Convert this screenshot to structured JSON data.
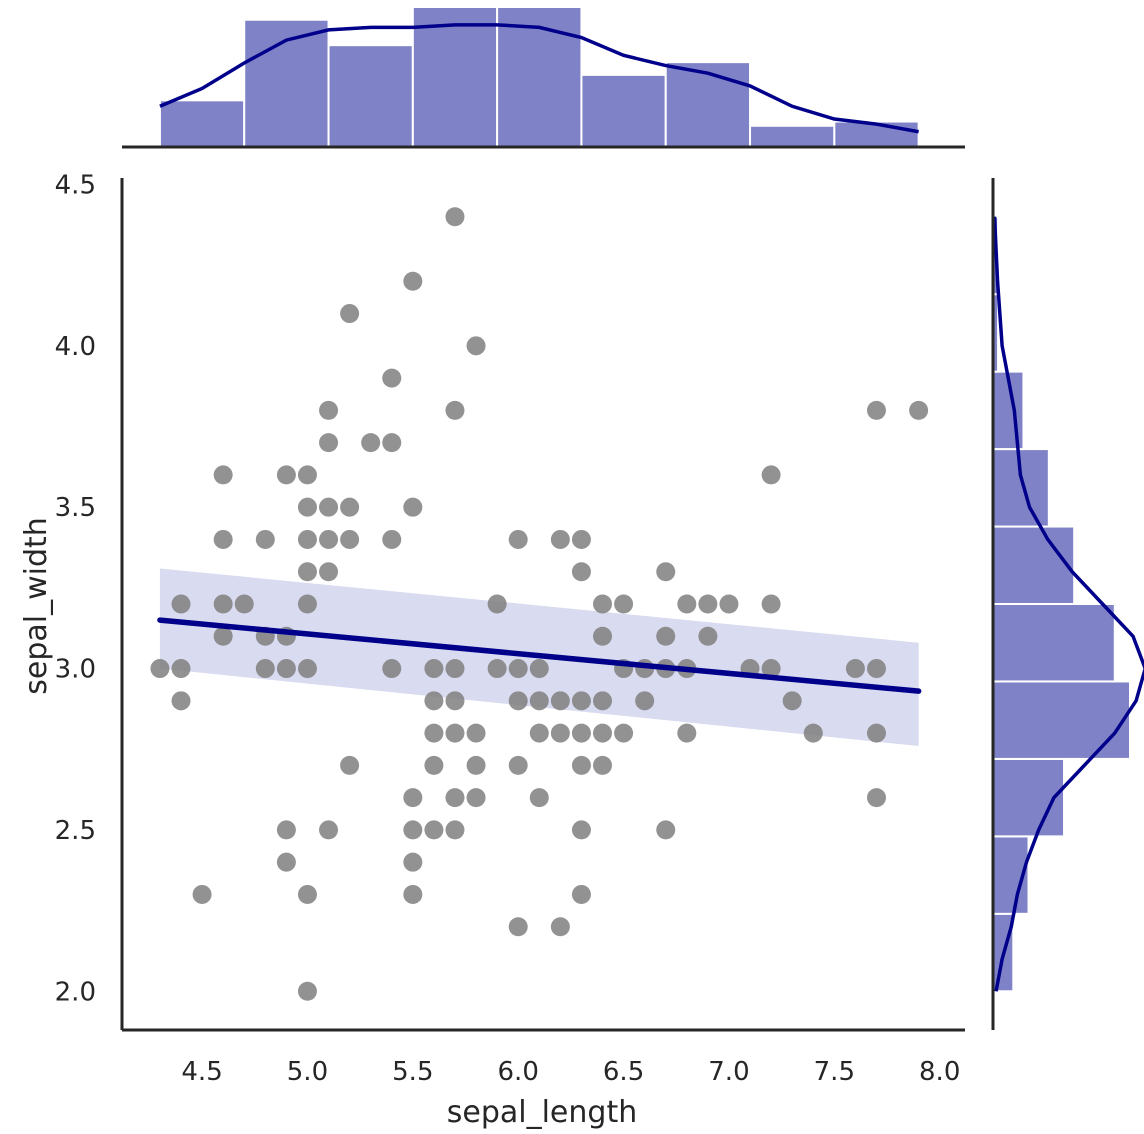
{
  "chart_data": {
    "type": "scatter",
    "title": "",
    "xlabel": "sepal_length",
    "ylabel": "sepal_width",
    "xlim": [
      4.12,
      8.12
    ],
    "ylim": [
      1.88,
      4.52
    ],
    "x_ticks": [
      4.5,
      5.0,
      5.5,
      6.0,
      6.5,
      7.0,
      7.5,
      8.0
    ],
    "y_ticks": [
      2.0,
      2.5,
      3.0,
      3.5,
      4.0,
      4.5
    ],
    "grid": false,
    "colors": {
      "points": "#7f7f7f",
      "regression_line": "#00008b",
      "confidence_band": "#aab0dd",
      "histogram": "#7f82c7",
      "kde": "#00008b",
      "axes": "#262626"
    },
    "points": [
      [
        4.3,
        3.0
      ],
      [
        4.4,
        2.9
      ],
      [
        4.4,
        3.0
      ],
      [
        4.4,
        3.2
      ],
      [
        4.5,
        2.3
      ],
      [
        4.6,
        3.1
      ],
      [
        4.6,
        3.2
      ],
      [
        4.6,
        3.4
      ],
      [
        4.6,
        3.6
      ],
      [
        4.7,
        3.2
      ],
      [
        4.8,
        3.0
      ],
      [
        4.8,
        3.1
      ],
      [
        4.8,
        3.4
      ],
      [
        4.9,
        2.4
      ],
      [
        4.9,
        2.5
      ],
      [
        4.9,
        3.0
      ],
      [
        4.9,
        3.1
      ],
      [
        4.9,
        3.6
      ],
      [
        5.0,
        2.0
      ],
      [
        5.0,
        2.3
      ],
      [
        5.0,
        3.0
      ],
      [
        5.0,
        3.2
      ],
      [
        5.0,
        3.3
      ],
      [
        5.0,
        3.4
      ],
      [
        5.0,
        3.5
      ],
      [
        5.0,
        3.6
      ],
      [
        5.1,
        2.5
      ],
      [
        5.1,
        3.3
      ],
      [
        5.1,
        3.4
      ],
      [
        5.1,
        3.5
      ],
      [
        5.1,
        3.7
      ],
      [
        5.1,
        3.8
      ],
      [
        5.2,
        2.7
      ],
      [
        5.2,
        3.4
      ],
      [
        5.2,
        3.5
      ],
      [
        5.2,
        4.1
      ],
      [
        5.3,
        3.7
      ],
      [
        5.4,
        3.0
      ],
      [
        5.4,
        3.4
      ],
      [
        5.4,
        3.7
      ],
      [
        5.4,
        3.9
      ],
      [
        5.5,
        2.3
      ],
      [
        5.5,
        2.4
      ],
      [
        5.5,
        2.5
      ],
      [
        5.5,
        2.6
      ],
      [
        5.5,
        3.5
      ],
      [
        5.5,
        4.2
      ],
      [
        5.6,
        2.5
      ],
      [
        5.6,
        2.7
      ],
      [
        5.6,
        2.8
      ],
      [
        5.6,
        2.9
      ],
      [
        5.6,
        3.0
      ],
      [
        5.7,
        2.5
      ],
      [
        5.7,
        2.6
      ],
      [
        5.7,
        2.8
      ],
      [
        5.7,
        2.9
      ],
      [
        5.7,
        3.0
      ],
      [
        5.7,
        3.8
      ],
      [
        5.7,
        4.4
      ],
      [
        5.8,
        2.6
      ],
      [
        5.8,
        2.7
      ],
      [
        5.8,
        2.8
      ],
      [
        5.8,
        4.0
      ],
      [
        5.9,
        3.0
      ],
      [
        5.9,
        3.2
      ],
      [
        6.0,
        2.2
      ],
      [
        6.0,
        2.7
      ],
      [
        6.0,
        2.9
      ],
      [
        6.0,
        3.0
      ],
      [
        6.0,
        3.4
      ],
      [
        6.1,
        2.6
      ],
      [
        6.1,
        2.8
      ],
      [
        6.1,
        2.9
      ],
      [
        6.1,
        3.0
      ],
      [
        6.2,
        2.2
      ],
      [
        6.2,
        2.8
      ],
      [
        6.2,
        2.9
      ],
      [
        6.2,
        3.4
      ],
      [
        6.3,
        2.3
      ],
      [
        6.3,
        2.5
      ],
      [
        6.3,
        2.7
      ],
      [
        6.3,
        2.8
      ],
      [
        6.3,
        2.9
      ],
      [
        6.3,
        3.3
      ],
      [
        6.3,
        3.4
      ],
      [
        6.4,
        2.7
      ],
      [
        6.4,
        2.8
      ],
      [
        6.4,
        2.9
      ],
      [
        6.4,
        3.1
      ],
      [
        6.4,
        3.2
      ],
      [
        6.5,
        2.8
      ],
      [
        6.5,
        3.0
      ],
      [
        6.5,
        3.2
      ],
      [
        6.6,
        2.9
      ],
      [
        6.6,
        3.0
      ],
      [
        6.7,
        2.5
      ],
      [
        6.7,
        3.0
      ],
      [
        6.7,
        3.1
      ],
      [
        6.7,
        3.3
      ],
      [
        6.8,
        2.8
      ],
      [
        6.8,
        3.0
      ],
      [
        6.8,
        3.2
      ],
      [
        6.9,
        3.1
      ],
      [
        6.9,
        3.2
      ],
      [
        7.0,
        3.2
      ],
      [
        7.1,
        3.0
      ],
      [
        7.2,
        3.0
      ],
      [
        7.2,
        3.2
      ],
      [
        7.2,
        3.6
      ],
      [
        7.3,
        2.9
      ],
      [
        7.4,
        2.8
      ],
      [
        7.6,
        3.0
      ],
      [
        7.7,
        2.6
      ],
      [
        7.7,
        2.8
      ],
      [
        7.7,
        3.0
      ],
      [
        7.7,
        3.8
      ],
      [
        7.9,
        3.8
      ]
    ],
    "regression": {
      "x_range": [
        4.3,
        7.9
      ],
      "y_at_ends": [
        3.15,
        2.93
      ],
      "ci_lower_at_ends": [
        3.0,
        2.76
      ],
      "ci_upper_at_ends": [
        3.31,
        3.08
      ]
    },
    "marginal_x": {
      "bin_edges": [
        4.3,
        4.7,
        5.1,
        5.5,
        5.9,
        6.3,
        6.7,
        7.1,
        7.5,
        7.9
      ],
      "counts": [
        11,
        30,
        24,
        33,
        33,
        17,
        20,
        5,
        6
      ],
      "kde": [
        [
          4.3,
          9.6
        ],
        [
          4.5,
          13.8
        ],
        [
          4.7,
          19.8
        ],
        [
          4.9,
          25.2
        ],
        [
          5.1,
          27.6
        ],
        [
          5.3,
          28.2
        ],
        [
          5.5,
          28.2
        ],
        [
          5.7,
          28.8
        ],
        [
          5.9,
          28.8
        ],
        [
          6.1,
          28.2
        ],
        [
          6.3,
          25.8
        ],
        [
          6.5,
          21.6
        ],
        [
          6.7,
          19.2
        ],
        [
          6.9,
          17.4
        ],
        [
          7.1,
          14.4
        ],
        [
          7.3,
          9.6
        ],
        [
          7.5,
          6.6
        ],
        [
          7.7,
          5.4
        ],
        [
          7.9,
          3.6
        ]
      ]
    },
    "marginal_y": {
      "bin_edges": [
        2.0,
        2.24,
        2.48,
        2.72,
        2.96,
        3.2,
        3.44,
        3.68,
        3.92,
        4.16,
        4.4
      ],
      "counts": [
        4,
        7,
        14,
        27,
        24,
        16,
        11,
        6,
        1,
        1
      ],
      "kde": [
        [
          2.0,
          0.6
        ],
        [
          2.1,
          1.8
        ],
        [
          2.2,
          3.6
        ],
        [
          2.3,
          4.8
        ],
        [
          2.4,
          6.6
        ],
        [
          2.5,
          9.0
        ],
        [
          2.6,
          12.0
        ],
        [
          2.7,
          18.0
        ],
        [
          2.8,
          24.0
        ],
        [
          2.9,
          28.2
        ],
        [
          3.0,
          30.0
        ],
        [
          3.1,
          27.6
        ],
        [
          3.2,
          21.6
        ],
        [
          3.3,
          15.6
        ],
        [
          3.4,
          10.8
        ],
        [
          3.5,
          7.2
        ],
        [
          3.6,
          5.4
        ],
        [
          3.7,
          4.8
        ],
        [
          3.8,
          4.2
        ],
        [
          3.9,
          3.0
        ],
        [
          4.0,
          1.8
        ],
        [
          4.2,
          0.9
        ],
        [
          4.4,
          0.3
        ]
      ]
    }
  }
}
